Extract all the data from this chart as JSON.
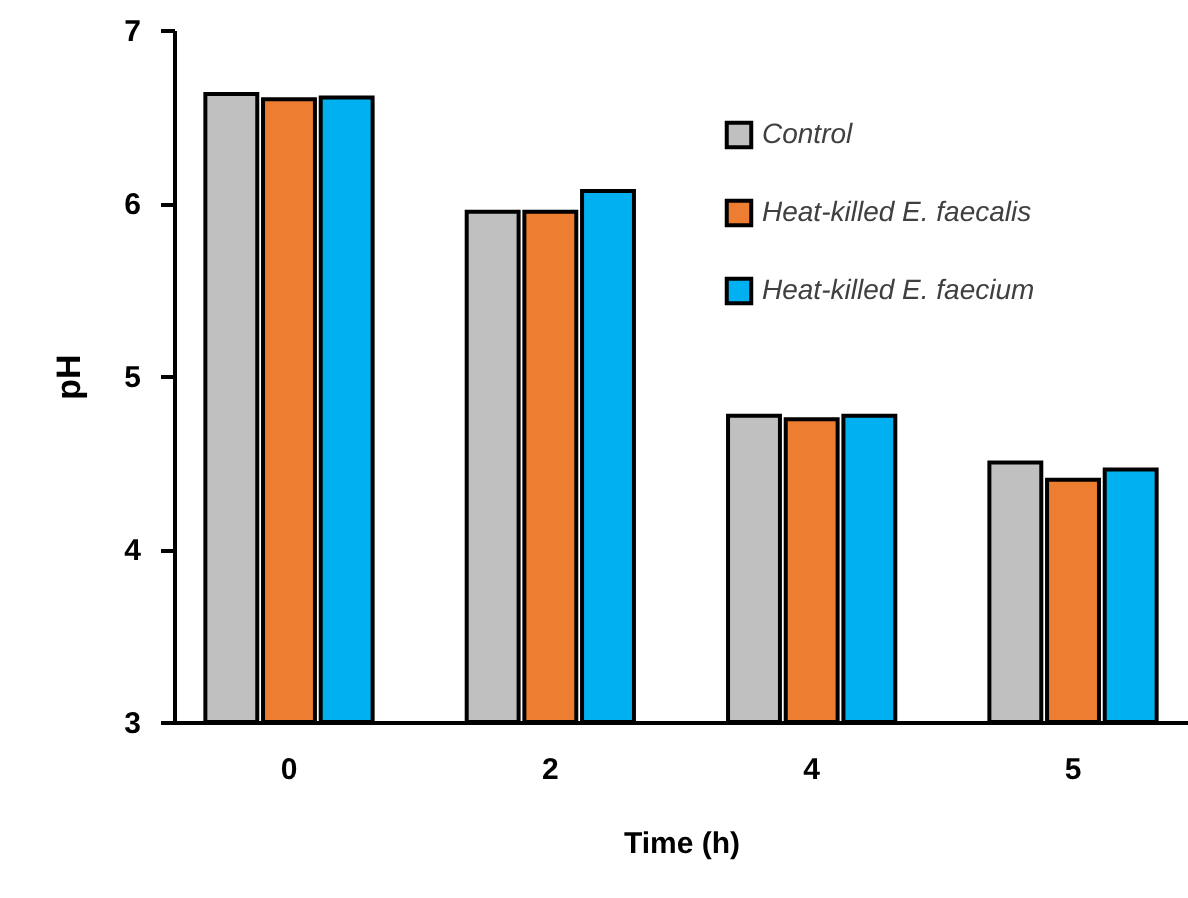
{
  "chart_data": {
    "type": "bar",
    "xlabel": "Time (h)",
    "ylabel": "pH",
    "categories": [
      "0",
      "2",
      "4",
      "5"
    ],
    "series": [
      {
        "name": "Control",
        "color": "#c0c0c0",
        "values": [
          6.63,
          5.95,
          4.77,
          4.5
        ]
      },
      {
        "name": "Heat-killed E. faecalis",
        "color": "#ed7d31",
        "values": [
          6.6,
          5.95,
          4.75,
          4.4
        ]
      },
      {
        "name": "Heat-killed E. faecium",
        "color": "#00b0f0",
        "values": [
          6.61,
          6.07,
          4.77,
          4.46
        ]
      }
    ],
    "ylim": [
      3,
      7
    ],
    "yticks": [
      3,
      4,
      5,
      6,
      7
    ],
    "grid": false,
    "legend": "top right"
  }
}
